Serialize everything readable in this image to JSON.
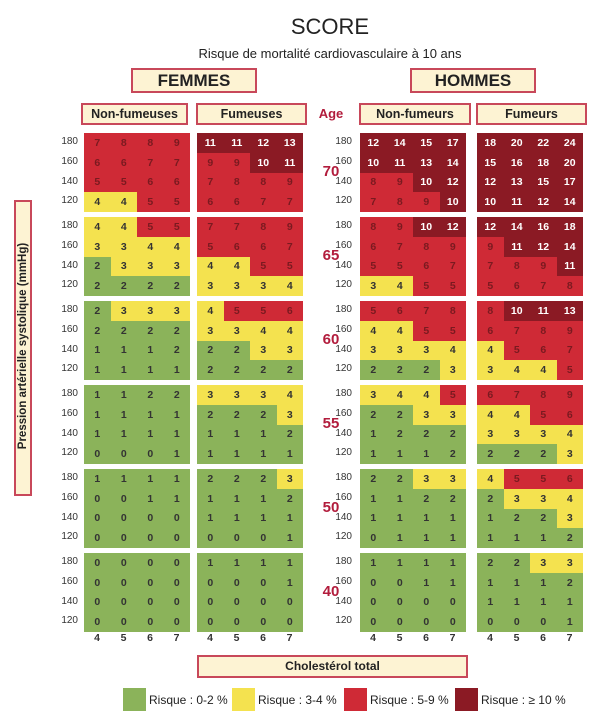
{
  "title": "SCORE",
  "subtitle": "Risque de mortalité cardiovasculaire à 10 ans",
  "sex_headers": {
    "women": "FEMMES",
    "men": "HOMMES"
  },
  "group_headers": {
    "women_nonsmokers": "Non-fumeuses",
    "women_smokers": "Fumeuses",
    "men_nonsmokers": "Non-fumeurs",
    "men_smokers": "Fumeurs",
    "age": "Age"
  },
  "colors": {
    "green": "#8bb35a",
    "yellow": "#f4e24f",
    "red": "#cf2a36",
    "darkred": "#8b1a24"
  },
  "chart_data": {
    "type": "heatmap",
    "title": "SCORE",
    "subtitle": "Risque de mortalité cardiovasculaire à 10 ans",
    "xlabel": "Cholestérol total",
    "ylabel": "Pression artérielle systolique (mmHg)",
    "cholesterol_ticks": [
      "4",
      "5",
      "6",
      "7"
    ],
    "sbp_ticks": [
      "180",
      "160",
      "140",
      "120"
    ],
    "ages": [
      "70",
      "65",
      "60",
      "55",
      "50",
      "40"
    ],
    "legend": [
      {
        "label": "Risque : 0-2 %",
        "color": "#8bb35a",
        "min": 0,
        "max": 2
      },
      {
        "label": "Risque : 3-4 %",
        "color": "#f4e24f",
        "min": 3,
        "max": 4
      },
      {
        "label": "Risque : 5-9 %",
        "color": "#cf2a36",
        "min": 5,
        "max": 9
      },
      {
        "label": "Risque : ≥ 10 %",
        "color": "#8b1a24",
        "min": 10,
        "max": 100
      }
    ],
    "panels": {
      "women_nonsmokers": [
        [
          [
            7,
            8,
            8,
            9
          ],
          [
            6,
            6,
            7,
            7
          ],
          [
            5,
            5,
            6,
            6
          ],
          [
            4,
            4,
            5,
            5
          ]
        ],
        [
          [
            4,
            4,
            5,
            5
          ],
          [
            3,
            3,
            4,
            4
          ],
          [
            2,
            3,
            3,
            3
          ],
          [
            2,
            2,
            2,
            2
          ]
        ],
        [
          [
            2,
            3,
            3,
            3
          ],
          [
            2,
            2,
            2,
            2
          ],
          [
            1,
            1,
            1,
            2
          ],
          [
            1,
            1,
            1,
            1
          ]
        ],
        [
          [
            1,
            1,
            2,
            2
          ],
          [
            1,
            1,
            1,
            1
          ],
          [
            1,
            1,
            1,
            1
          ],
          [
            0,
            0,
            0,
            1
          ]
        ],
        [
          [
            1,
            1,
            1,
            1
          ],
          [
            0,
            0,
            1,
            1
          ],
          [
            0,
            0,
            0,
            0
          ],
          [
            0,
            0,
            0,
            0
          ]
        ],
        [
          [
            0,
            0,
            0,
            0
          ],
          [
            0,
            0,
            0,
            0
          ],
          [
            0,
            0,
            0,
            0
          ],
          [
            0,
            0,
            0,
            0
          ]
        ]
      ],
      "women_smokers": [
        [
          [
            11,
            11,
            12,
            13
          ],
          [
            9,
            9,
            10,
            11
          ],
          [
            7,
            8,
            8,
            9
          ],
          [
            6,
            6,
            7,
            7
          ]
        ],
        [
          [
            7,
            7,
            8,
            9
          ],
          [
            5,
            6,
            6,
            7
          ],
          [
            4,
            4,
            5,
            5
          ],
          [
            3,
            3,
            3,
            4
          ]
        ],
        [
          [
            4,
            5,
            5,
            6
          ],
          [
            3,
            3,
            4,
            4
          ],
          [
            2,
            2,
            3,
            3
          ],
          [
            2,
            2,
            2,
            2
          ]
        ],
        [
          [
            3,
            3,
            3,
            4
          ],
          [
            2,
            2,
            2,
            3
          ],
          [
            1,
            1,
            1,
            2
          ],
          [
            1,
            1,
            1,
            1
          ]
        ],
        [
          [
            2,
            2,
            2,
            3
          ],
          [
            1,
            1,
            1,
            2
          ],
          [
            1,
            1,
            1,
            1
          ],
          [
            0,
            0,
            0,
            1
          ]
        ],
        [
          [
            1,
            1,
            1,
            1
          ],
          [
            0,
            0,
            0,
            1
          ],
          [
            0,
            0,
            0,
            0
          ],
          [
            0,
            0,
            0,
            0
          ]
        ]
      ],
      "men_nonsmokers": [
        [
          [
            12,
            14,
            15,
            17
          ],
          [
            10,
            11,
            13,
            14
          ],
          [
            8,
            9,
            10,
            12
          ],
          [
            7,
            8,
            9,
            10
          ]
        ],
        [
          [
            8,
            9,
            10,
            12
          ],
          [
            6,
            7,
            8,
            9
          ],
          [
            5,
            5,
            6,
            7
          ],
          [
            3,
            4,
            5,
            5
          ]
        ],
        [
          [
            5,
            6,
            7,
            8
          ],
          [
            4,
            4,
            5,
            5
          ],
          [
            3,
            3,
            3,
            4
          ],
          [
            2,
            2,
            2,
            3
          ]
        ],
        [
          [
            3,
            4,
            4,
            5
          ],
          [
            2,
            2,
            3,
            3
          ],
          [
            1,
            2,
            2,
            2
          ],
          [
            1,
            1,
            1,
            2
          ]
        ],
        [
          [
            2,
            2,
            3,
            3
          ],
          [
            1,
            1,
            2,
            2
          ],
          [
            1,
            1,
            1,
            1
          ],
          [
            0,
            1,
            1,
            1
          ]
        ],
        [
          [
            1,
            1,
            1,
            1
          ],
          [
            0,
            0,
            1,
            1
          ],
          [
            0,
            0,
            0,
            0
          ],
          [
            0,
            0,
            0,
            0
          ]
        ]
      ],
      "men_smokers": [
        [
          [
            18,
            20,
            22,
            24
          ],
          [
            15,
            16,
            18,
            20
          ],
          [
            12,
            13,
            15,
            17
          ],
          [
            10,
            11,
            12,
            14
          ]
        ],
        [
          [
            12,
            14,
            16,
            18
          ],
          [
            9,
            11,
            12,
            14
          ],
          [
            7,
            8,
            9,
            11
          ],
          [
            5,
            6,
            7,
            8
          ]
        ],
        [
          [
            8,
            10,
            11,
            13
          ],
          [
            6,
            7,
            8,
            9
          ],
          [
            4,
            5,
            6,
            7
          ],
          [
            3,
            4,
            4,
            5
          ]
        ],
        [
          [
            6,
            7,
            8,
            9
          ],
          [
            4,
            4,
            5,
            6
          ],
          [
            3,
            3,
            3,
            4
          ],
          [
            2,
            2,
            2,
            3
          ]
        ],
        [
          [
            4,
            5,
            5,
            6
          ],
          [
            2,
            3,
            3,
            4
          ],
          [
            1,
            2,
            2,
            3
          ],
          [
            1,
            1,
            1,
            2
          ]
        ],
        [
          [
            2,
            2,
            3,
            3
          ],
          [
            1,
            1,
            1,
            2
          ],
          [
            1,
            1,
            1,
            1
          ],
          [
            0,
            0,
            0,
            1
          ]
        ]
      ]
    }
  }
}
